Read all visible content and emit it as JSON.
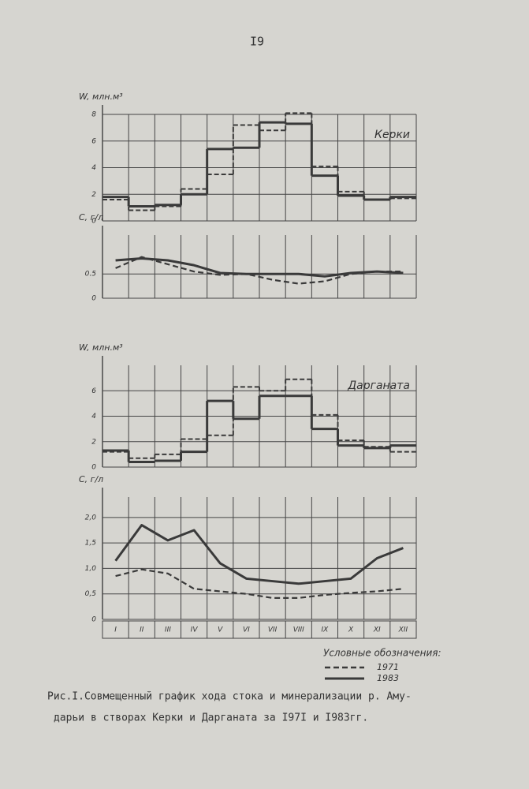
{
  "page_number": "I9",
  "caption": [
    "Рис.I.Совмещенный  график  хода  стока и минерализации р. Аму-",
    "дарьи в створах  Керки и Дарганата за I97I и I983гг."
  ],
  "chart_data": [
    {
      "type": "step",
      "y_label": "W, млн.м³",
      "title": "Керки",
      "ylim": [
        0,
        8
      ],
      "yticks": [
        0,
        2,
        4,
        6,
        8
      ],
      "grid": true,
      "series": [
        {
          "color": "#3a3a3a",
          "dash": false,
          "values": [
            1.8,
            1.1,
            1.2,
            2.0,
            5.4,
            5.5,
            7.4,
            7.3,
            3.4,
            1.9,
            1.6,
            1.8
          ]
        },
        {
          "color": "#3a3a3a",
          "dash": true,
          "values": [
            1.6,
            0.8,
            1.1,
            2.4,
            3.5,
            7.2,
            6.8,
            8.1,
            4.1,
            2.2,
            1.6,
            1.7
          ]
        }
      ]
    },
    {
      "type": "line",
      "y_label": "С, г/л",
      "ylim": [
        0,
        1.3
      ],
      "yticks": [
        0,
        0.5
      ],
      "grid": true,
      "series": [
        {
          "color": "#3a3a3a",
          "dash": false,
          "values": [
            0.78,
            0.82,
            0.78,
            0.68,
            0.52,
            0.5,
            0.5,
            0.5,
            0.45,
            0.52,
            0.55,
            0.52
          ]
        },
        {
          "color": "#3a3a3a",
          "dash": true,
          "values": [
            0.62,
            0.85,
            0.7,
            0.55,
            0.48,
            0.5,
            0.38,
            0.3,
            0.35,
            0.5,
            0.55,
            0.55
          ]
        }
      ]
    },
    {
      "type": "step",
      "y_label": "W, млн.м³",
      "title": "Дарганата",
      "ylim": [
        0,
        8
      ],
      "yticks": [
        0,
        2,
        4,
        6
      ],
      "grid": true,
      "series": [
        {
          "color": "#3a3a3a",
          "dash": false,
          "values": [
            1.3,
            0.4,
            0.5,
            1.2,
            5.2,
            3.8,
            5.6,
            5.6,
            3.0,
            1.7,
            1.5,
            1.7
          ]
        },
        {
          "color": "#3a3a3a",
          "dash": true,
          "values": [
            1.2,
            0.7,
            1.0,
            2.2,
            2.5,
            6.3,
            6.0,
            6.9,
            4.1,
            2.1,
            1.6,
            1.2
          ]
        }
      ]
    },
    {
      "type": "line",
      "y_label": "С, г/л",
      "ylim": [
        0,
        2.4
      ],
      "yticks": [
        0,
        {
          "value": 0.5,
          "label": "0,5"
        },
        {
          "value": 1.0,
          "label": "1,0"
        },
        {
          "value": 1.5,
          "label": "1,5"
        },
        {
          "value": 2.0,
          "label": "2,0"
        }
      ],
      "grid": true,
      "categories": [
        "I",
        "II",
        "III",
        "IV",
        "V",
        "VI",
        "VII",
        "VIII",
        "IX",
        "X",
        "XI",
        "XII"
      ],
      "legend_title": "Условные обозначения:",
      "series": [
        {
          "name": "1983",
          "color": "#3a3a3a",
          "dash": false,
          "values": [
            1.15,
            1.85,
            1.55,
            1.75,
            1.1,
            0.8,
            0.75,
            0.7,
            0.75,
            0.8,
            1.2,
            1.4
          ]
        },
        {
          "name": "1971",
          "color": "#3a3a3a",
          "dash": true,
          "values": [
            0.85,
            0.98,
            0.9,
            0.6,
            0.55,
            0.5,
            0.42,
            0.42,
            0.48,
            0.52,
            0.55,
            0.6
          ]
        }
      ]
    }
  ]
}
